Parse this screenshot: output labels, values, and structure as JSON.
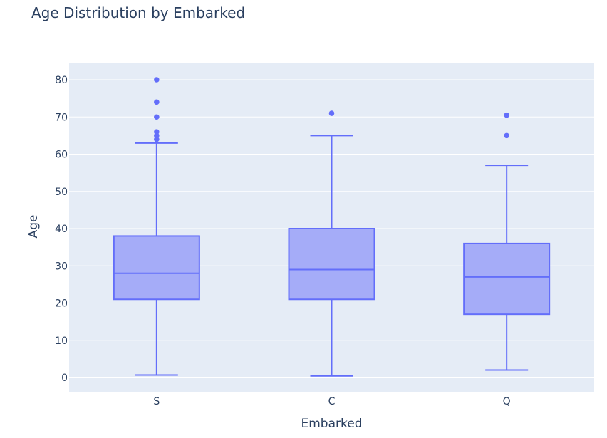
{
  "chart_data": {
    "type": "box",
    "title": "Age Distribution by Embarked",
    "xlabel": "Embarked",
    "ylabel": "Age",
    "ylim": [
      -4,
      84
    ],
    "yticks": [
      0,
      10,
      20,
      30,
      40,
      50,
      60,
      70,
      80
    ],
    "grid": true,
    "legend": "none",
    "colors": {
      "plot_background": "#e5ecf6",
      "gridline": "#ffffff",
      "box_line": "#636efa",
      "box_fill": "#a5acf8",
      "text": "#2a3f5f"
    },
    "categories": [
      "S",
      "C",
      "Q"
    ],
    "boxes": [
      {
        "category": "S",
        "lower_fence": 0.67,
        "q1": 21,
        "median": 28,
        "q3": 38,
        "upper_fence": 63,
        "outliers": [
          64,
          65,
          66,
          70,
          74,
          80
        ]
      },
      {
        "category": "C",
        "lower_fence": 0.42,
        "q1": 21,
        "median": 29,
        "q3": 40,
        "upper_fence": 65,
        "outliers": [
          71
        ]
      },
      {
        "category": "Q",
        "lower_fence": 2,
        "q1": 17,
        "median": 27,
        "q3": 36,
        "upper_fence": 57,
        "outliers": [
          65,
          70.5
        ]
      }
    ]
  }
}
